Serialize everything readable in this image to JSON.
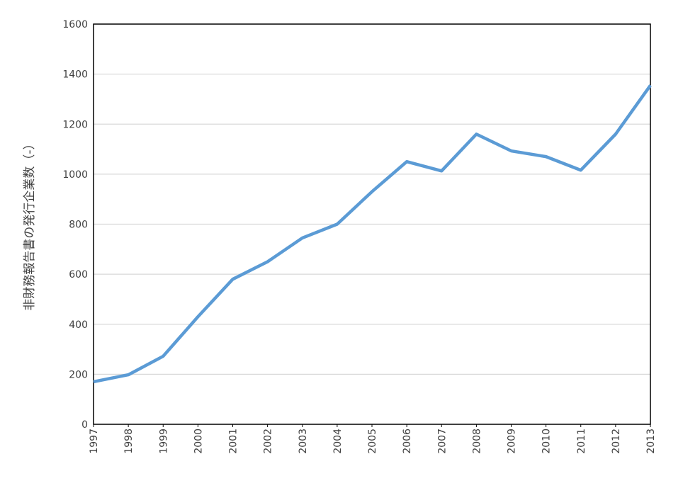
{
  "chart_data": {
    "type": "line",
    "title": "",
    "xlabel": "",
    "ylabel": "非財務報告書の発行企業数（-）",
    "x": [
      "1997",
      "1998",
      "1999",
      "2000",
      "2001",
      "2002",
      "2003",
      "2004",
      "2005",
      "2006",
      "2007",
      "2008",
      "2009",
      "2010",
      "2011",
      "2012",
      "2013"
    ],
    "series": [
      {
        "values": [
          170,
          198,
          272,
          430,
          580,
          650,
          745,
          800,
          930,
          1050,
          1013,
          1160,
          1093,
          1070,
          1016,
          1160,
          1355
        ],
        "color": "#5b9bd5"
      }
    ],
    "ylim": [
      0,
      1600
    ],
    "yticks": [
      0,
      200,
      400,
      600,
      800,
      1000,
      1200,
      1400,
      1600
    ],
    "grid": true,
    "gridColor": "#d9d9d9",
    "legend": "none"
  }
}
